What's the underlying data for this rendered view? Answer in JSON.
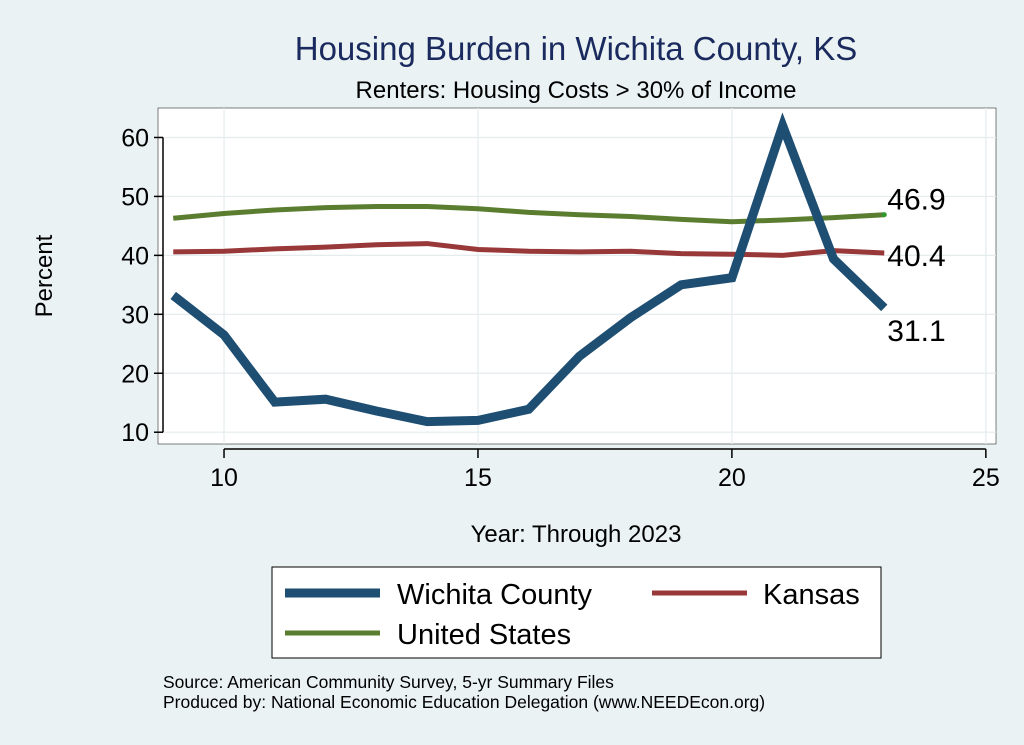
{
  "chart_data": {
    "type": "line",
    "title": "Housing Burden in Wichita County, KS",
    "subtitle": "Renters: Housing Costs > 30% of Income",
    "xlabel": "Year: Through 2023",
    "ylabel": "Percent",
    "xlim": [
      8.7,
      25.2
    ],
    "ylim": [
      8,
      65
    ],
    "x_ticks": [
      10,
      15,
      20,
      25
    ],
    "y_ticks": [
      10,
      20,
      30,
      40,
      50,
      60
    ],
    "grid": true,
    "x": [
      9,
      10,
      11,
      12,
      13,
      14,
      15,
      16,
      17,
      18,
      19,
      20,
      21,
      22,
      23
    ],
    "series": [
      {
        "name": "Wichita County",
        "color": "#1f4e73",
        "values": [
          33.2,
          26.5,
          15.1,
          15.6,
          13.6,
          11.8,
          12.0,
          13.9,
          22.9,
          29.4,
          35.0,
          36.2,
          62.0,
          39.4,
          31.1
        ],
        "end_label": "31.1"
      },
      {
        "name": "Kansas",
        "color": "#993838",
        "values": [
          40.6,
          40.7,
          41.1,
          41.4,
          41.8,
          42.0,
          41.0,
          40.7,
          40.6,
          40.7,
          40.3,
          40.2,
          40.0,
          40.8,
          40.4
        ],
        "end_label": "40.4"
      },
      {
        "name": "United States",
        "color": "#5a7d30",
        "values": [
          46.3,
          47.1,
          47.7,
          48.1,
          48.3,
          48.3,
          47.9,
          47.3,
          46.9,
          46.6,
          46.1,
          45.7,
          46.0,
          46.4,
          46.9
        ],
        "end_label": "46.9"
      }
    ],
    "legend": {
      "position": "bottom",
      "items": [
        "Wichita County",
        "Kansas",
        "United States"
      ]
    },
    "notes": [
      "Source: American Community Survey, 5-yr Summary Files",
      "Produced by: National Economic Education Delegation (www.NEEDEcon.org)"
    ]
  }
}
